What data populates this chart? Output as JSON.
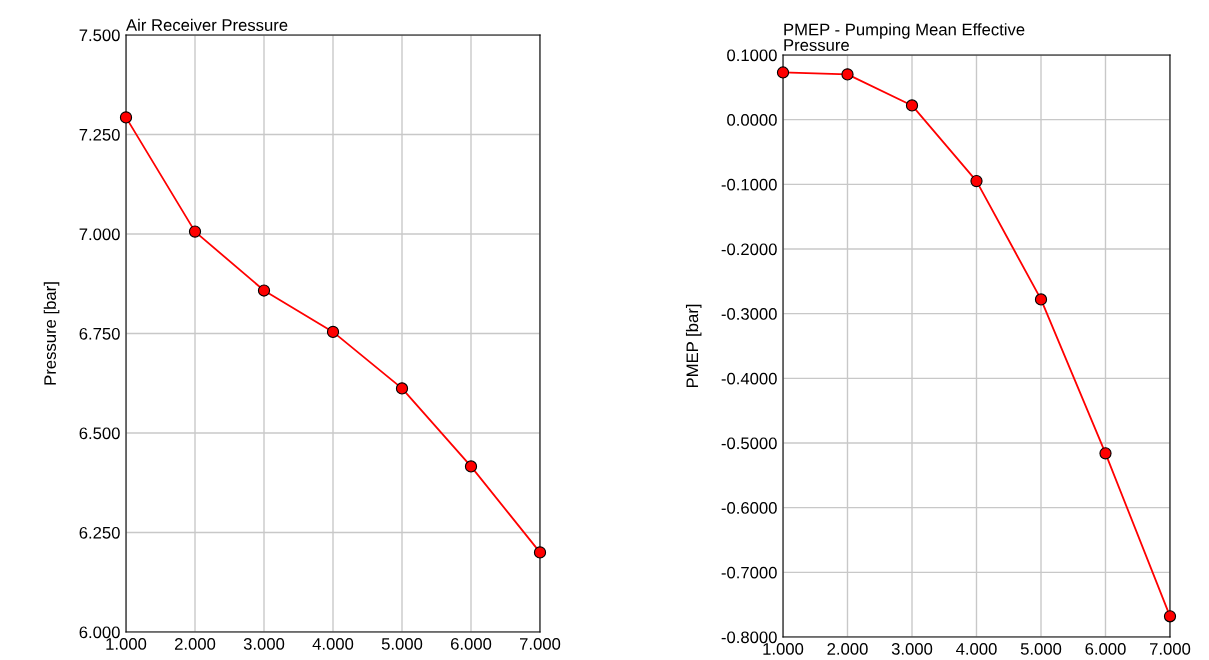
{
  "chart_data": [
    {
      "type": "line",
      "title": "Air Receiver Pressure",
      "ylabel": "Pressure [bar]",
      "x": [
        1,
        2,
        3,
        4,
        5,
        6,
        7
      ],
      "series": [
        {
          "color": "#ff0000",
          "values": [
            7.293,
            7.006,
            6.858,
            6.754,
            6.612,
            6.416,
            6.2
          ]
        }
      ],
      "xlim": [
        1,
        7
      ],
      "xticks": [
        {
          "value": 1,
          "label": "1.000"
        },
        {
          "value": 2,
          "label": "2.000"
        },
        {
          "value": 3,
          "label": "3.000"
        },
        {
          "value": 4,
          "label": "4.000"
        },
        {
          "value": 5,
          "label": "5.000"
        },
        {
          "value": 6,
          "label": "6.000"
        },
        {
          "value": 7,
          "label": "7.000"
        }
      ],
      "ylim": [
        6,
        7.5
      ],
      "yticks": [
        {
          "value": 6,
          "label": "6.000"
        },
        {
          "value": 6.25,
          "label": "6.250"
        },
        {
          "value": 6.5,
          "label": "6.500"
        },
        {
          "value": 6.75,
          "label": "6.750"
        },
        {
          "value": 7,
          "label": "7.000"
        },
        {
          "value": 7.25,
          "label": "7.250"
        },
        {
          "value": 7.5,
          "label": "7.500"
        }
      ],
      "grid": true,
      "marker": "circle"
    },
    {
      "type": "line",
      "title": "PMEP - Pumping Mean Effective\nPressure",
      "ylabel": "PMEP [bar]",
      "x": [
        1,
        2,
        3,
        4,
        5,
        6,
        7
      ],
      "series": [
        {
          "color": "#ff0000",
          "values": [
            0.073,
            0.07,
            0.022,
            -0.095,
            -0.278,
            -0.516,
            -0.768
          ]
        }
      ],
      "xlim": [
        1,
        7
      ],
      "xticks": [
        {
          "value": 1,
          "label": "1.000"
        },
        {
          "value": 2,
          "label": "2.000"
        },
        {
          "value": 3,
          "label": "3.000"
        },
        {
          "value": 4,
          "label": "4.000"
        },
        {
          "value": 5,
          "label": "5.000"
        },
        {
          "value": 6,
          "label": "6.000"
        },
        {
          "value": 7,
          "label": "7.000"
        }
      ],
      "ylim": [
        -0.8,
        0.1
      ],
      "yticks": [
        {
          "value": -0.8,
          "label": "-0.8000"
        },
        {
          "value": -0.7,
          "label": "-0.7000"
        },
        {
          "value": -0.6,
          "label": "-0.6000"
        },
        {
          "value": -0.5,
          "label": "-0.5000"
        },
        {
          "value": -0.4,
          "label": "-0.4000"
        },
        {
          "value": -0.3,
          "label": "-0.3000"
        },
        {
          "value": -0.2,
          "label": "-0.2000"
        },
        {
          "value": -0.1,
          "label": "-0.1000"
        },
        {
          "value": 0,
          "label": "0.0000"
        },
        {
          "value": 0.1,
          "label": "0.1000"
        }
      ],
      "grid": true,
      "marker": "circle"
    }
  ]
}
